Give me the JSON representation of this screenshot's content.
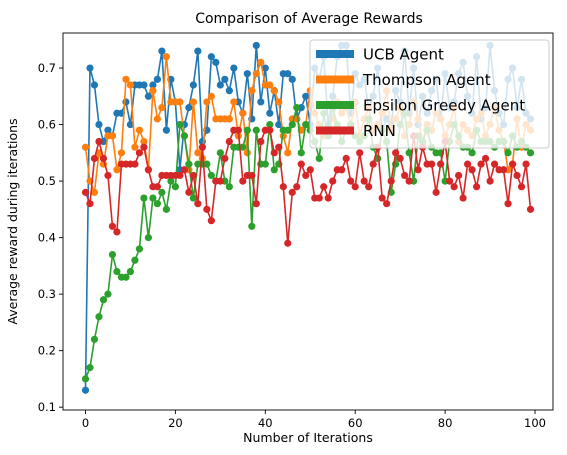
{
  "chart_data": {
    "type": "line",
    "title": "Comparison of Average Rewards",
    "xlabel": "Number of Iterations",
    "ylabel": "Average reward during iterations",
    "xlim": [
      -5,
      104
    ],
    "ylim": [
      0.095,
      0.762
    ],
    "xticks": [
      0,
      20,
      40,
      60,
      80,
      100
    ],
    "yticks": [
      0.1,
      0.2,
      0.3,
      0.4,
      0.5,
      0.6,
      0.7
    ],
    "grid": false,
    "legend_position": "top-right",
    "markers": true,
    "series": [
      {
        "name": "UCB Agent",
        "color": "#1f77b4",
        "y": [
          0.13,
          0.7,
          0.67,
          0.6,
          0.57,
          0.59,
          0.58,
          0.62,
          0.62,
          0.64,
          0.6,
          0.67,
          0.67,
          0.67,
          0.65,
          0.67,
          0.68,
          0.73,
          0.59,
          0.68,
          0.64,
          0.52,
          0.6,
          0.63,
          0.67,
          0.73,
          0.57,
          0.59,
          0.72,
          0.71,
          0.67,
          0.68,
          0.66,
          0.7,
          0.64,
          0.62,
          0.69,
          0.61,
          0.74,
          0.64,
          0.7,
          0.62,
          0.66,
          0.6,
          0.69,
          0.69,
          0.68,
          0.61,
          0.63,
          0.65,
          0.6,
          0.7,
          0.68,
          0.72,
          0.6,
          0.65,
          0.72,
          0.74,
          0.74,
          0.62,
          0.69,
          0.67,
          0.68,
          0.63,
          0.65,
          0.7,
          0.59,
          0.61,
          0.6,
          0.66,
          0.64,
          0.73,
          0.62,
          0.7,
          0.6,
          0.65,
          0.62,
          0.66,
          0.68,
          0.61,
          0.69,
          0.63,
          0.64,
          0.69,
          0.71,
          0.65,
          0.62,
          0.72,
          0.61,
          0.63,
          0.74,
          0.66,
          0.62,
          0.6,
          0.68,
          0.7,
          0.63,
          0.68,
          0.62,
          0.61
        ]
      },
      {
        "name": "Thompson Agent",
        "color": "#ff7f0e",
        "y": [
          0.56,
          0.5,
          0.48,
          0.55,
          0.53,
          0.58,
          0.58,
          0.52,
          0.55,
          0.68,
          0.67,
          0.56,
          0.59,
          0.57,
          0.52,
          0.66,
          0.61,
          0.63,
          0.72,
          0.64,
          0.64,
          0.64,
          0.58,
          0.52,
          0.64,
          0.55,
          0.54,
          0.64,
          0.65,
          0.61,
          0.61,
          0.61,
          0.61,
          0.64,
          0.58,
          0.62,
          0.55,
          0.66,
          0.69,
          0.71,
          0.67,
          0.67,
          0.66,
          0.64,
          0.58,
          0.55,
          0.61,
          0.61,
          0.59,
          0.6,
          0.66,
          0.62,
          0.6,
          0.58,
          0.59,
          0.61,
          0.64,
          0.62,
          0.63,
          0.6,
          0.64,
          0.58,
          0.61,
          0.63,
          0.59,
          0.6,
          0.62,
          0.66,
          0.59,
          0.61,
          0.63,
          0.58,
          0.6,
          0.64,
          0.61,
          0.57,
          0.6,
          0.59,
          0.62,
          0.61,
          0.58,
          0.6,
          0.63,
          0.57,
          0.6,
          0.59,
          0.58,
          0.61,
          0.62,
          0.58,
          0.6,
          0.63,
          0.59,
          0.57,
          0.52,
          0.53,
          0.61,
          0.56,
          0.6,
          0.59
        ]
      },
      {
        "name": "Epsilon Greedy Agent",
        "color": "#2ca02c",
        "y": [
          0.15,
          0.17,
          0.22,
          0.26,
          0.29,
          0.3,
          0.37,
          0.34,
          0.33,
          0.33,
          0.34,
          0.36,
          0.38,
          0.47,
          0.4,
          0.47,
          0.46,
          0.48,
          0.45,
          0.5,
          0.49,
          0.6,
          0.58,
          0.53,
          0.47,
          0.53,
          0.53,
          0.53,
          0.51,
          0.5,
          0.55,
          0.5,
          0.49,
          0.56,
          0.56,
          0.56,
          0.59,
          0.42,
          0.59,
          0.53,
          0.53,
          0.6,
          0.52,
          0.53,
          0.59,
          0.59,
          0.6,
          0.63,
          0.55,
          0.6,
          0.59,
          0.57,
          0.54,
          0.62,
          0.58,
          0.63,
          0.6,
          0.57,
          0.59,
          0.6,
          0.58,
          0.57,
          0.58,
          0.61,
          0.56,
          0.54,
          0.59,
          0.57,
          0.48,
          0.53,
          0.6,
          0.62,
          0.55,
          0.5,
          0.58,
          0.57,
          0.59,
          0.56,
          0.55,
          0.55,
          0.5,
          0.57,
          0.6,
          0.58,
          0.56,
          0.56,
          0.55,
          0.59,
          0.57,
          0.57,
          0.57,
          0.56,
          0.57,
          0.57,
          0.55,
          0.58,
          0.56,
          0.57,
          0.56,
          0.55
        ]
      },
      {
        "name": "RNN",
        "color": "#d62728",
        "y": [
          0.48,
          0.46,
          0.54,
          0.57,
          0.54,
          0.51,
          0.42,
          0.41,
          0.53,
          0.53,
          0.53,
          0.53,
          0.55,
          0.56,
          0.52,
          0.49,
          0.49,
          0.51,
          0.51,
          0.51,
          0.51,
          0.51,
          0.52,
          0.48,
          0.51,
          0.46,
          0.56,
          0.45,
          0.43,
          0.5,
          0.5,
          0.54,
          0.57,
          0.59,
          0.59,
          0.5,
          0.51,
          0.51,
          0.46,
          0.57,
          0.59,
          0.59,
          0.55,
          0.56,
          0.49,
          0.39,
          0.48,
          0.49,
          0.53,
          0.51,
          0.52,
          0.47,
          0.47,
          0.49,
          0.47,
          0.5,
          0.52,
          0.52,
          0.54,
          0.5,
          0.49,
          0.55,
          0.5,
          0.49,
          0.53,
          0.56,
          0.47,
          0.46,
          0.5,
          0.55,
          0.54,
          0.51,
          0.5,
          0.58,
          0.52,
          0.56,
          0.53,
          0.53,
          0.48,
          0.53,
          0.57,
          0.5,
          0.49,
          0.51,
          0.47,
          0.53,
          0.52,
          0.49,
          0.53,
          0.54,
          0.5,
          0.53,
          0.52,
          0.52,
          0.46,
          0.53,
          0.51,
          0.49,
          0.53,
          0.45
        ]
      }
    ]
  }
}
